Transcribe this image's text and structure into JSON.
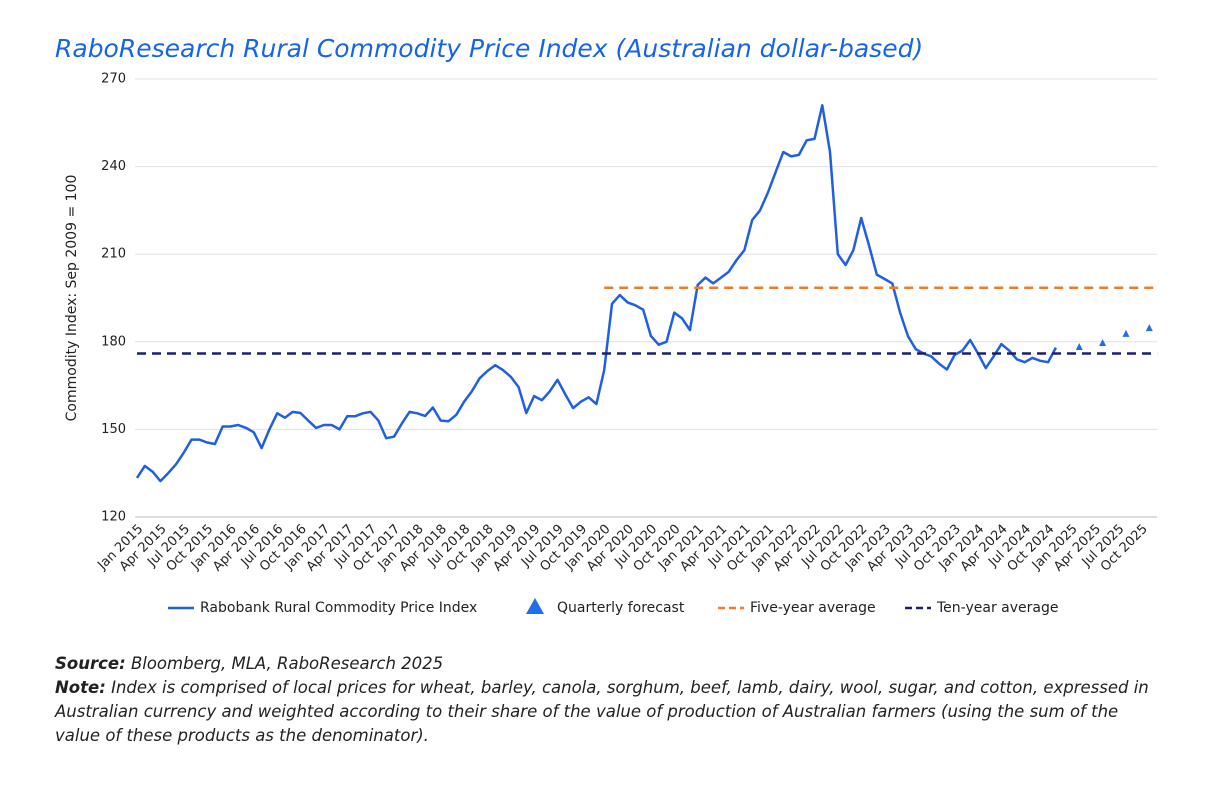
{
  "chart_data": {
    "type": "line",
    "title": "RaboResearch Rural Commodity Price Index (Australian dollar-based)",
    "y_label": "Commodity Index:  Sep 2009 = 100",
    "categories": [
      "Jan 2015",
      null,
      null,
      "Apr 2015",
      null,
      null,
      "Jul 2015",
      null,
      null,
      "Oct 2015",
      null,
      null,
      "Jan 2016",
      null,
      null,
      "Apr 2016",
      null,
      null,
      "Jul 2016",
      null,
      null,
      "Oct 2016",
      null,
      null,
      "Jan 2017",
      null,
      null,
      "Apr 2017",
      null,
      null,
      "Jul 2017",
      null,
      null,
      "Oct 2017",
      null,
      null,
      "Jan 2018",
      null,
      null,
      "Apr 2018",
      null,
      null,
      "Jul 2018",
      null,
      null,
      "Oct 2018",
      null,
      null,
      "Jan 2019",
      null,
      null,
      "Apr 2019",
      null,
      null,
      "Jul 2019",
      null,
      null,
      "Oct 2019",
      null,
      null,
      "Jan 2020",
      null,
      null,
      "Apr 2020",
      null,
      null,
      "Jul 2020",
      null,
      null,
      "Oct 2020",
      null,
      null,
      "Jan 2021",
      null,
      null,
      "Apr 2021",
      null,
      null,
      "Jul 2021",
      null,
      null,
      "Oct 2021",
      null,
      null,
      "Jan 2022",
      null,
      null,
      "Apr 2022",
      null,
      null,
      "Jul 2022",
      null,
      null,
      "Oct 2022",
      null,
      null,
      "Jan 2023",
      null,
      null,
      "Apr 2023",
      null,
      null,
      "Jul 2023",
      null,
      null,
      "Oct 2023",
      null,
      null,
      "Jan 2024",
      null,
      null,
      "Apr 2024",
      null,
      null,
      "Jul 2024",
      null,
      null,
      "Oct 2024",
      null,
      null,
      "Jan 2025",
      null,
      null,
      "Apr 2025",
      null,
      null,
      "Jul 2025",
      null,
      null,
      "Oct 2025",
      null,
      null
    ],
    "series": [
      {
        "name": "Rabobank Rural Commodity Price Index",
        "color": "#1f5fe0",
        "style": "line",
        "values": [
          133.4,
          137.5,
          135.5,
          132.3,
          135,
          138,
          142,
          146.5,
          146.5,
          145.5,
          145,
          151,
          151,
          151.5,
          150.5,
          149,
          143.6,
          150,
          155.5,
          154,
          156,
          155.6,
          153,
          150.5,
          151.5,
          151.5,
          150,
          154.5,
          154.5,
          155.5,
          156,
          153,
          147,
          147.5,
          152,
          156,
          155.5,
          154.6,
          157.5,
          153,
          152.8,
          155,
          159.5,
          163,
          167.5,
          170,
          172,
          170.3,
          168,
          164.5,
          155.6,
          161.4,
          160,
          163,
          167,
          162,
          157.3,
          159.5,
          161,
          158.7,
          170.3,
          193,
          196,
          193.5,
          192.5,
          191,
          182,
          179,
          180,
          190,
          188,
          184,
          199.5,
          202,
          200,
          202,
          204,
          208,
          211.4,
          221.7,
          225,
          231,
          238,
          245,
          243.5,
          244,
          249,
          249.5,
          261,
          245,
          210,
          206.3,
          211.4,
          222.4,
          213,
          203,
          201.5,
          200,
          190,
          182,
          177.5,
          176,
          175,
          172.5,
          170.5,
          175.5,
          177,
          180.6,
          176,
          171,
          175,
          179.2,
          177,
          174,
          173,
          174.5,
          173.5,
          173,
          178,
          null,
          null,
          null,
          null,
          null,
          null,
          null,
          null,
          null,
          null,
          null,
          null,
          null
        ]
      },
      {
        "name": "Quarterly forecast",
        "color": "#1f6fe8",
        "style": "triangle",
        "values": [
          null,
          null,
          null,
          null,
          null,
          null,
          null,
          null,
          null,
          null,
          null,
          null,
          null,
          null,
          null,
          null,
          null,
          null,
          null,
          null,
          null,
          null,
          null,
          null,
          null,
          null,
          null,
          null,
          null,
          null,
          null,
          null,
          null,
          null,
          null,
          null,
          null,
          null,
          null,
          null,
          null,
          null,
          null,
          null,
          null,
          null,
          null,
          null,
          null,
          null,
          null,
          null,
          null,
          null,
          null,
          null,
          null,
          null,
          null,
          null,
          null,
          null,
          null,
          null,
          null,
          null,
          null,
          null,
          null,
          null,
          null,
          null,
          null,
          null,
          null,
          null,
          null,
          null,
          null,
          null,
          null,
          null,
          null,
          null,
          null,
          null,
          null,
          null,
          null,
          null,
          null,
          null,
          null,
          null,
          null,
          null,
          null,
          null,
          null,
          null,
          null,
          null,
          null,
          null,
          null,
          null,
          null,
          null,
          null,
          null,
          null,
          null,
          null,
          null,
          null,
          null,
          null,
          null,
          null,
          null,
          null,
          178.2,
          null,
          null,
          179.6,
          null,
          null,
          182.7,
          null,
          null,
          184.7,
          null
        ]
      },
      {
        "name": "Five-year average",
        "color": "#f07b2a",
        "style": "dash",
        "values": [
          null,
          null,
          null,
          null,
          null,
          null,
          null,
          null,
          null,
          null,
          null,
          null,
          null,
          null,
          null,
          null,
          null,
          null,
          null,
          null,
          null,
          null,
          null,
          null,
          null,
          null,
          null,
          null,
          null,
          null,
          null,
          null,
          null,
          null,
          null,
          null,
          null,
          null,
          null,
          null,
          null,
          null,
          null,
          null,
          null,
          null,
          null,
          null,
          null,
          null,
          null,
          null,
          null,
          null,
          null,
          null,
          null,
          null,
          null,
          null,
          198.5,
          198.5,
          198.5,
          198.5,
          198.5,
          198.5,
          198.5,
          198.5,
          198.5,
          198.5,
          198.5,
          198.5,
          198.5,
          198.5,
          198.5,
          198.5,
          198.5,
          198.5,
          198.5,
          198.5,
          198.5,
          198.5,
          198.5,
          198.5,
          198.5,
          198.5,
          198.5,
          198.5,
          198.5,
          198.5,
          198.5,
          198.5,
          198.5,
          198.5,
          198.5,
          198.5,
          198.5,
          198.5,
          198.5,
          198.5,
          198.5,
          198.5,
          198.5,
          198.5,
          198.5,
          198.5,
          198.5,
          198.5,
          198.5,
          198.5,
          198.5,
          198.5,
          198.5,
          198.5,
          198.5,
          198.5,
          198.5,
          198.5,
          198.5,
          198.5,
          198.5,
          198.5,
          198.5,
          198.5,
          198.5,
          198.5,
          198.5,
          198.5,
          198.5,
          198.5,
          198.5,
          198.5
        ]
      },
      {
        "name": "Ten-year average",
        "color": "#1a1f6e",
        "style": "dash",
        "values": [
          176,
          176,
          176,
          176,
          176,
          176,
          176,
          176,
          176,
          176,
          176,
          176,
          176,
          176,
          176,
          176,
          176,
          176,
          176,
          176,
          176,
          176,
          176,
          176,
          176,
          176,
          176,
          176,
          176,
          176,
          176,
          176,
          176,
          176,
          176,
          176,
          176,
          176,
          176,
          176,
          176,
          176,
          176,
          176,
          176,
          176,
          176,
          176,
          176,
          176,
          176,
          176,
          176,
          176,
          176,
          176,
          176,
          176,
          176,
          176,
          176,
          176,
          176,
          176,
          176,
          176,
          176,
          176,
          176,
          176,
          176,
          176,
          176,
          176,
          176,
          176,
          176,
          176,
          176,
          176,
          176,
          176,
          176,
          176,
          176,
          176,
          176,
          176,
          176,
          176,
          176,
          176,
          176,
          176,
          176,
          176,
          176,
          176,
          176,
          176,
          176,
          176,
          176,
          176,
          176,
          176,
          176,
          176,
          176,
          176,
          176,
          176,
          176,
          176,
          176,
          176,
          176,
          176,
          176,
          176,
          176,
          176,
          176,
          176,
          176,
          176,
          176,
          176,
          176,
          176,
          176,
          176
        ]
      }
    ],
    "ylim": [
      120,
      270
    ],
    "yticks": [
      120,
      150,
      180,
      210,
      240,
      270
    ],
    "grid": true,
    "source_label": "Source:",
    "source": "Bloomberg, MLA, RaboResearch 2025",
    "note_label": "Note:",
    "note": "Index is comprised of local prices for wheat, barley, canola, sorghum, beef, lamb, dairy, wool, sugar, and cotton, expressed in Australian currency and weighted according to their share of the value of production of Australian farmers (using the sum of the value of these products as the denominator)."
  }
}
